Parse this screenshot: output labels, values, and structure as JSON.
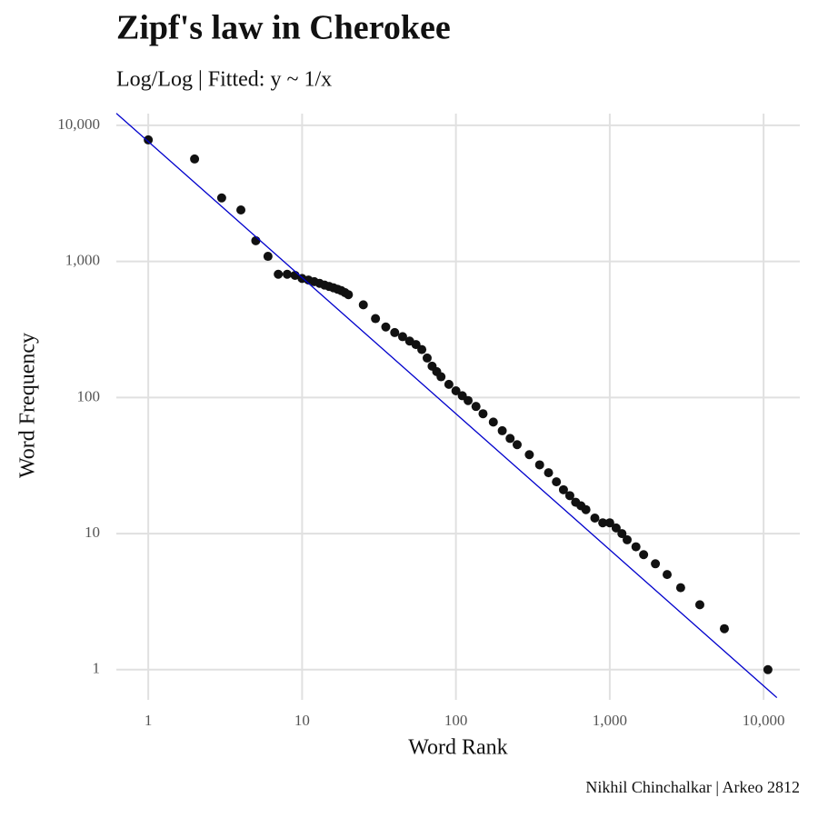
{
  "chart_data": {
    "type": "scatter",
    "title": "Zipf's law in Cherokee",
    "subtitle": "Log/Log | Fitted: y ~ 1/x",
    "caption": "Nikhil Chinchalkar | Arkeo 2812",
    "x_label": "Word Rank",
    "y_label": "Word Frequency",
    "x_log": true,
    "y_log": true,
    "grid": true,
    "xlim": [
      0.62,
      17200
    ],
    "ylim": [
      0.6,
      12200
    ],
    "xticks": [
      1,
      10,
      {
        "value": 100,
        "label": "100"
      },
      {
        "value": 1000,
        "label": "1,000"
      },
      {
        "value": 10000,
        "label": "10,000"
      }
    ],
    "yticks": [
      1,
      10,
      100,
      {
        "value": 1000,
        "label": "1,000"
      },
      {
        "value": 10000,
        "label": "10,000"
      }
    ],
    "color": "#111111",
    "x": [
      1,
      2,
      3,
      4,
      5,
      6,
      7,
      8,
      9,
      10,
      11,
      12,
      13,
      14,
      15,
      16,
      17,
      18,
      19,
      20,
      25,
      30,
      35,
      40,
      45,
      50,
      55,
      60,
      65,
      70,
      75,
      80,
      90,
      100,
      110,
      120,
      135,
      150,
      175,
      200,
      225,
      250,
      300,
      350,
      400,
      450,
      500,
      550,
      600,
      650,
      700,
      800,
      900,
      1000,
      1100,
      1200,
      1297,
      1480,
      1660,
      1980,
      2360,
      2890,
      3850,
      5560,
      10670
    ],
    "values": [
      7820,
      5660,
      2930,
      2390,
      1420,
      1090,
      805,
      805,
      790,
      750,
      730,
      710,
      690,
      670,
      655,
      640,
      625,
      610,
      590,
      570,
      480,
      380,
      330,
      300,
      280,
      260,
      245,
      225,
      195,
      170,
      155,
      142,
      125,
      112,
      103,
      95,
      86,
      76,
      66,
      57,
      50,
      45,
      38,
      32,
      28,
      24,
      21,
      19,
      17,
      16,
      15,
      13,
      12,
      12,
      11,
      10,
      9,
      8,
      7,
      6,
      5,
      4,
      3,
      2,
      1
    ],
    "fit": {
      "x": [
        0.62,
        12200
      ],
      "values": [
        12258,
        0.623
      ],
      "color": "#0000cc"
    }
  }
}
